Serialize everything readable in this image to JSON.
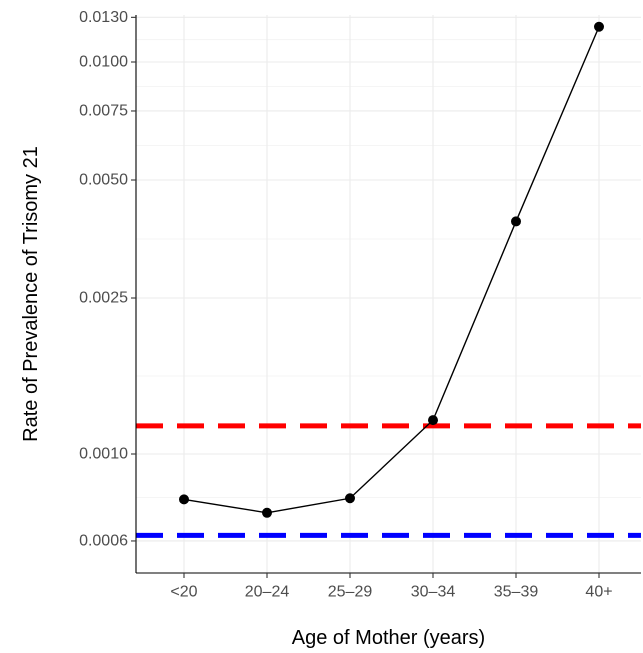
{
  "chart_data": {
    "type": "line",
    "title": "",
    "xlabel": "Age of Mother (years)",
    "ylabel": "Rate of Prevalence of Trisomy 21",
    "y_scale": "log",
    "ylim": [
      0.0006,
      0.013
    ],
    "grid": true,
    "categories": [
      "<20",
      "20–24",
      "25–29",
      "30–34",
      "35–39",
      "40+"
    ],
    "y_ticks": [
      {
        "value": 0.0006,
        "label": "0.0006"
      },
      {
        "value": 0.001,
        "label": "0.0010"
      },
      {
        "value": 0.0025,
        "label": "0.0025"
      },
      {
        "value": 0.005,
        "label": "0.0050"
      },
      {
        "value": 0.0075,
        "label": "0.0075"
      },
      {
        "value": 0.01,
        "label": "0.0100"
      },
      {
        "value": 0.013,
        "label": "0.0130"
      }
    ],
    "series": [
      {
        "values": [
          0.000766,
          0.000708,
          0.000771,
          0.00122,
          0.00392,
          0.0123
        ],
        "color": "#000000"
      }
    ],
    "reference_lines": [
      {
        "value": 0.00118,
        "color": "#ff0000",
        "style": "dashed"
      },
      {
        "value": 0.00062,
        "color": "#0000ff",
        "style": "dashed"
      }
    ]
  }
}
